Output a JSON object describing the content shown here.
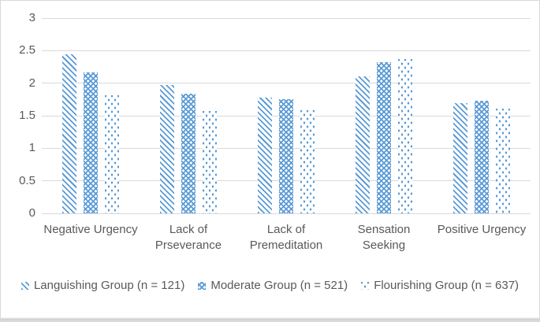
{
  "colors": {
    "bar_blue": "#5B9BD5",
    "text_gray": "#595959",
    "gridline": "#D9D9D9",
    "border": "#D8D8D8"
  },
  "chart_data": {
    "type": "bar",
    "title": "",
    "xlabel": "",
    "ylabel": "",
    "ylim": [
      0,
      3
    ],
    "y_ticks": [
      0,
      0.5,
      1,
      1.5,
      2,
      2.5,
      3
    ],
    "y_tick_labels": [
      "0",
      "0.5",
      "1",
      "1.5",
      "2",
      "2.5",
      "3"
    ],
    "grid": true,
    "legend_position": "bottom",
    "categories": [
      "Negative Urgency",
      "Lack of\nPrseverance",
      "Lack of\nPremeditation",
      "Sensation\nSeeking",
      "Positive Urgency"
    ],
    "series": [
      {
        "name": "Languishing Group (n = 121)",
        "pattern": "diagonal-stripe",
        "values": [
          2.44,
          1.97,
          1.78,
          2.1,
          1.7
        ]
      },
      {
        "name": "Moderate Group (n = 521)",
        "pattern": "crosshatch",
        "values": [
          2.17,
          1.84,
          1.75,
          2.32,
          1.73
        ]
      },
      {
        "name": "Flourishing Group (n = 637)",
        "pattern": "dots",
        "values": [
          1.82,
          1.57,
          1.58,
          2.37,
          1.61
        ]
      }
    ]
  }
}
